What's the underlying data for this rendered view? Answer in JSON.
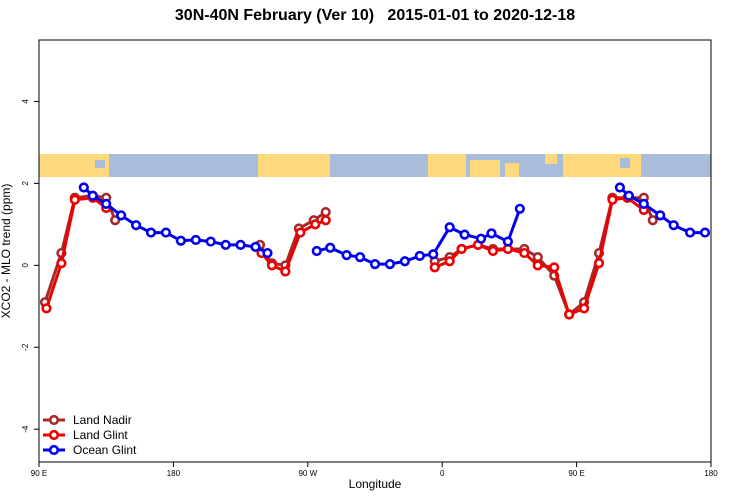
{
  "chart_data": {
    "type": "line",
    "title": "30N-40N February (Ver 10)   2015-01-01 to 2020-12-18",
    "x_label": "Longitude",
    "y_label": "XCO2 - MLO trend (ppm)",
    "xlim": [
      90,
      540
    ],
    "xticks": [
      {
        "value": 90,
        "label": "90 E"
      },
      {
        "value": 180,
        "label": "180"
      },
      {
        "value": 270,
        "label": "90 W"
      },
      {
        "value": 360,
        "label": "0"
      },
      {
        "value": 450,
        "label": "90 E"
      },
      {
        "value": 540,
        "label": "180"
      }
    ],
    "ylim": [
      -4.8,
      5.5
    ],
    "yticks": [
      -4,
      -2,
      0,
      2,
      4
    ],
    "legend": "bottomleft",
    "series": [
      {
        "name": "Land Nadir",
        "color": "#a52a2a",
        "x": [
          94,
          105,
          114,
          126,
          135,
          141,
          null,
          238,
          246,
          255,
          264,
          274,
          282,
          null,
          355,
          365,
          373,
          384,
          394,
          404,
          415,
          424,
          435,
          445,
          455,
          465,
          474,
          484,
          495,
          501
        ],
        "values": [
          -0.9,
          0.3,
          1.65,
          1.7,
          1.65,
          1.1,
          null,
          0.5,
          0.05,
          0.0,
          0.9,
          1.1,
          1.3,
          null,
          0.1,
          0.2,
          0.4,
          0.5,
          0.4,
          0.4,
          0.4,
          0.2,
          -0.25,
          -1.2,
          -0.9,
          0.3,
          1.65,
          1.65,
          1.65,
          1.1
        ]
      },
      {
        "name": "Land Glint",
        "color": "#ee0000",
        "x": [
          95,
          105,
          114,
          126,
          135,
          null,
          239,
          246,
          255,
          265,
          275,
          282,
          null,
          355,
          365,
          373,
          384,
          394,
          404,
          415,
          424,
          435,
          445,
          455,
          465,
          474,
          484,
          495
        ],
        "values": [
          -1.05,
          0.05,
          1.6,
          1.65,
          1.4,
          null,
          0.3,
          0.0,
          -0.15,
          0.8,
          1.0,
          1.1,
          null,
          -0.05,
          0.1,
          0.4,
          0.5,
          0.35,
          0.4,
          0.3,
          0.0,
          -0.05,
          -1.2,
          -1.05,
          0.05,
          1.6,
          1.65,
          1.35
        ]
      },
      {
        "name": "Ocean Glint",
        "color": "#0000ee",
        "x": [
          120,
          126,
          135,
          145,
          155,
          165,
          175,
          185,
          195,
          205,
          215,
          225,
          235,
          243,
          null,
          276,
          285,
          296,
          305,
          315,
          325,
          335,
          345,
          354,
          365,
          375,
          386,
          393,
          404,
          412,
          null,
          479,
          485,
          495,
          506,
          515,
          526,
          536
        ],
        "values": [
          1.9,
          1.7,
          1.5,
          1.22,
          0.98,
          0.8,
          0.8,
          0.6,
          0.62,
          0.58,
          0.5,
          0.5,
          0.45,
          0.3,
          null,
          0.35,
          0.43,
          0.25,
          0.2,
          0.03,
          0.03,
          0.1,
          0.23,
          0.27,
          0.93,
          0.75,
          0.65,
          0.78,
          0.58,
          1.38,
          null,
          1.9,
          1.7,
          1.5,
          1.22,
          0.98,
          0.8,
          0.8
        ]
      }
    ]
  }
}
